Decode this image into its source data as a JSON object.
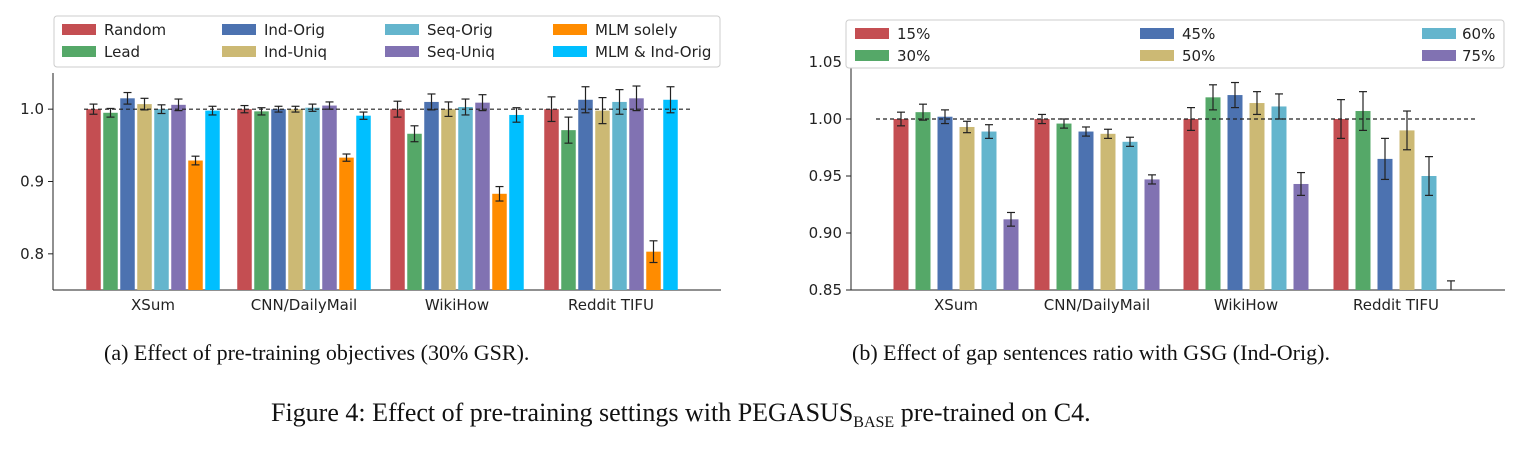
{
  "chart_data": [
    {
      "type": "bar",
      "categories": [
        "XSum",
        "CNN/DailyMail",
        "WikiHow",
        "Reddit TIFU"
      ],
      "ylim": [
        0.75,
        1.05
      ],
      "yticks": [
        0.8,
        0.9,
        1.0
      ],
      "ytick_labels": [
        "0.8",
        "0.9",
        "1.0"
      ],
      "reference_line": 1.0,
      "legend_position": "top",
      "series": [
        {
          "name": "Random",
          "color": "#c44e52",
          "values": [
            1.0,
            1.0,
            1.0,
            1.0
          ],
          "errors": [
            0.007,
            0.005,
            0.011,
            0.017
          ]
        },
        {
          "name": "Lead",
          "color": "#55a868",
          "values": [
            0.995,
            0.997,
            0.966,
            0.971
          ],
          "errors": [
            0.006,
            0.005,
            0.011,
            0.018
          ]
        },
        {
          "name": "Ind-Orig",
          "color": "#4c72b0",
          "values": [
            1.015,
            1.0,
            1.01,
            1.013
          ],
          "errors": [
            0.008,
            0.004,
            0.011,
            0.018
          ]
        },
        {
          "name": "Ind-Uniq",
          "color": "#ccb974",
          "values": [
            1.007,
            1.0,
            1.0,
            0.998
          ],
          "errors": [
            0.008,
            0.004,
            0.01,
            0.018
          ]
        },
        {
          "name": "Seq-Orig",
          "color": "#64b5cd",
          "values": [
            1.0,
            1.002,
            1.003,
            1.01
          ],
          "errors": [
            0.006,
            0.005,
            0.011,
            0.017
          ]
        },
        {
          "name": "Seq-Uniq",
          "color": "#8172b2",
          "values": [
            1.006,
            1.005,
            1.009,
            1.015
          ],
          "errors": [
            0.008,
            0.005,
            0.011,
            0.017
          ]
        },
        {
          "name": "MLM solely",
          "color": "#ff8c00",
          "values": [
            0.929,
            0.933,
            0.883,
            0.803
          ],
          "errors": [
            0.006,
            0.005,
            0.01,
            0.015
          ]
        },
        {
          "name": "MLM & Ind-Orig",
          "color": "#00bfff",
          "values": [
            0.998,
            0.991,
            0.992,
            1.013
          ],
          "errors": [
            0.006,
            0.005,
            0.01,
            0.018
          ]
        }
      ]
    },
    {
      "type": "bar",
      "categories": [
        "XSum",
        "CNN/DailyMail",
        "WikiHow",
        "Reddit TIFU"
      ],
      "ylim": [
        0.85,
        1.05
      ],
      "yticks": [
        0.85,
        0.9,
        0.95,
        1.0,
        1.05
      ],
      "ytick_labels": [
        "0.85",
        "0.90",
        "0.95",
        "1.00",
        "1.05"
      ],
      "reference_line": 1.0,
      "legend_position": "top",
      "series": [
        {
          "name": "15%",
          "color": "#c44e52",
          "values": [
            1.0,
            1.0,
            1.0,
            1.0
          ],
          "errors": [
            0.006,
            0.004,
            0.01,
            0.017
          ]
        },
        {
          "name": "30%",
          "color": "#55a868",
          "values": [
            1.006,
            0.996,
            1.019,
            1.007
          ],
          "errors": [
            0.007,
            0.004,
            0.011,
            0.017
          ]
        },
        {
          "name": "45%",
          "color": "#4c72b0",
          "values": [
            1.002,
            0.989,
            1.021,
            0.965
          ],
          "errors": [
            0.006,
            0.004,
            0.011,
            0.018
          ]
        },
        {
          "name": "50%",
          "color": "#ccb974",
          "values": [
            0.993,
            0.987,
            1.014,
            0.99
          ],
          "errors": [
            0.005,
            0.004,
            0.01,
            0.017
          ]
        },
        {
          "name": "60%",
          "color": "#64b5cd",
          "values": [
            0.989,
            0.98,
            1.011,
            0.95
          ],
          "errors": [
            0.006,
            0.004,
            0.011,
            0.017
          ]
        },
        {
          "name": "75%",
          "color": "#8172b2",
          "values": [
            0.912,
            0.947,
            0.943,
            0.85
          ],
          "errors": [
            0.006,
            0.004,
            0.01,
            0.008
          ]
        }
      ]
    }
  ],
  "captions": {
    "left": "(a) Effect of pre-training objectives (30% GSR).",
    "right": "(b) Effect of gap sentences ratio with GSG (Ind-Orig).",
    "figure_prefix": "Figure 4: Effect of pre-training settings with PEGASUS",
    "figure_subscript": "BASE",
    "figure_suffix": " pre-trained on C4."
  }
}
